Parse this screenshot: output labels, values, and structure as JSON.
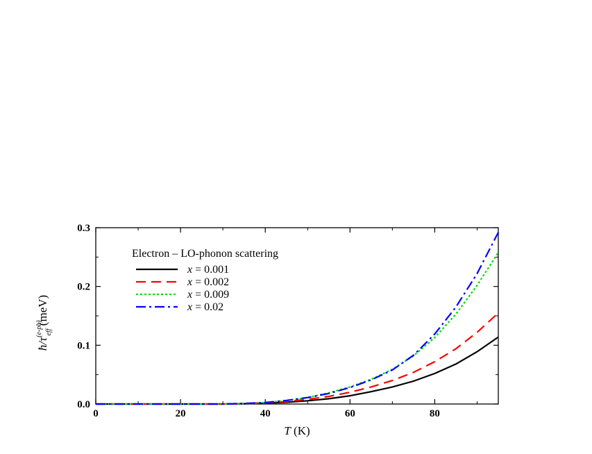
{
  "chart_data": {
    "type": "line",
    "title": "",
    "legend_title": "Electron – LO-phonon scattering",
    "legend_placement": "top-left",
    "grid": false,
    "xlabel": {
      "var": "T",
      "unit": "(K)"
    },
    "ylabel": {
      "main": "ħ/τ",
      "sup": "(e-ph)",
      "sub": "eff",
      "unit": "(meV)"
    },
    "xlim": [
      0,
      95
    ],
    "ylim": [
      0,
      0.3
    ],
    "xticks": [
      0,
      20,
      40,
      60,
      80
    ],
    "xtick_labels": [
      "0",
      "20",
      "40",
      "60",
      "80"
    ],
    "yticks": [
      0,
      0.1,
      0.2,
      0.3
    ],
    "ytick_labels": [
      "0.0",
      "0.1",
      "0.2",
      "0.3"
    ],
    "series": [
      {
        "name": "x = 0.001",
        "var": "x",
        "eq": "= 0.001",
        "color": "#000000",
        "dash": "",
        "x": [
          0,
          30,
          35,
          40,
          45,
          50,
          55,
          60,
          65,
          70,
          75,
          80,
          85,
          90,
          95
        ],
        "y": [
          0,
          0,
          0.0005,
          0.0015,
          0.003,
          0.0055,
          0.009,
          0.014,
          0.021,
          0.029,
          0.039,
          0.052,
          0.068,
          0.089,
          0.114
        ]
      },
      {
        "name": "x = 0.002",
        "var": "x",
        "eq": "= 0.002",
        "color": "#ff0000",
        "dash": "14,8",
        "x": [
          0,
          30,
          35,
          40,
          45,
          50,
          55,
          60,
          65,
          70,
          75,
          80,
          85,
          90,
          95
        ],
        "y": [
          0,
          0,
          0.0008,
          0.002,
          0.004,
          0.008,
          0.013,
          0.02,
          0.029,
          0.04,
          0.054,
          0.072,
          0.094,
          0.122,
          0.155
        ]
      },
      {
        "name": "x = 0.009",
        "var": "x",
        "eq": "= 0.009",
        "color": "#00dd00",
        "dash": "3,3",
        "x": [
          0,
          30,
          35,
          40,
          45,
          50,
          55,
          60,
          65,
          70,
          75,
          80,
          85,
          90,
          95
        ],
        "y": [
          0,
          0,
          0.001,
          0.0025,
          0.006,
          0.011,
          0.019,
          0.029,
          0.042,
          0.059,
          0.082,
          0.113,
          0.153,
          0.202,
          0.258
        ]
      },
      {
        "name": "x = 0.02",
        "var": "x",
        "eq": "= 0.02",
        "color": "#0000ff",
        "dash": "14,5,3,5",
        "x": [
          0,
          30,
          35,
          40,
          45,
          50,
          55,
          60,
          65,
          70,
          75,
          80,
          85,
          90,
          95
        ],
        "y": [
          0,
          0,
          0.001,
          0.0025,
          0.006,
          0.011,
          0.018,
          0.028,
          0.041,
          0.058,
          0.083,
          0.119,
          0.165,
          0.222,
          0.292
        ]
      }
    ]
  }
}
